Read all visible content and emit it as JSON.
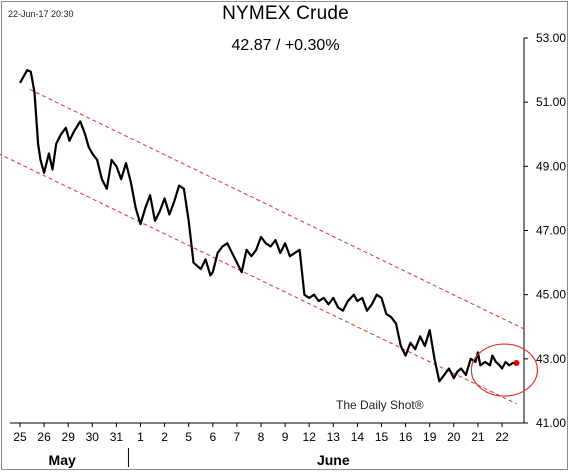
{
  "header": {
    "timestamp": "22-Jun-17 20:30",
    "title": "NYMEX Crude",
    "subtitle": "42.87  /  +0.30%"
  },
  "watermark": "The Daily Shot®",
  "chart_data": {
    "type": "line",
    "title": "NYMEX Crude",
    "subtitle": "42.87  /  +0.30%",
    "y_axis": {
      "position": "right",
      "ylim": [
        41.0,
        53.0
      ],
      "ticks": [
        "53.00",
        "51.00",
        "49.00",
        "47.00",
        "45.00",
        "43.00",
        "41.00"
      ]
    },
    "x_ticks": [
      "25",
      "26",
      "29",
      "30",
      "31",
      "1",
      "2",
      "5",
      "6",
      "7",
      "8",
      "9",
      "12",
      "13",
      "14",
      "15",
      "16",
      "19",
      "20",
      "21",
      "22"
    ],
    "month_labels": [
      "May",
      "June"
    ],
    "grid": false,
    "series": [
      {
        "color": "#000000",
        "x": [
          0,
          0.3,
          0.45,
          0.6,
          0.75,
          0.85,
          1.0,
          1.1,
          1.2,
          1.35,
          1.5,
          1.7,
          1.9,
          2.05,
          2.25,
          2.5,
          2.7,
          2.85,
          3.0,
          3.2,
          3.4,
          3.6,
          3.8,
          4.0,
          4.2,
          4.4,
          4.6,
          4.8,
          5.0,
          5.2,
          5.4,
          5.6,
          5.8,
          6.0,
          6.2,
          6.4,
          6.6,
          6.8,
          7.0,
          7.2,
          7.35,
          7.5,
          7.7,
          7.9,
          8.0,
          8.2,
          8.4,
          8.6,
          8.8,
          9.0,
          9.2,
          9.4,
          9.6,
          9.8,
          10.0,
          10.2,
          10.4,
          10.6,
          10.8,
          11.0,
          11.2,
          11.4,
          11.6,
          11.8,
          12.0,
          12.2,
          12.4,
          12.6,
          12.8,
          13.0,
          13.2,
          13.4,
          13.6,
          13.85,
          14.0,
          14.2,
          14.4,
          14.6,
          14.8,
          15.0,
          15.2,
          15.4,
          15.6,
          15.8,
          16.0,
          16.2,
          16.4,
          16.6,
          16.8,
          17.0,
          17.2,
          17.4,
          17.6,
          17.8,
          18.0,
          18.15,
          18.3,
          18.5,
          18.7,
          18.9,
          19.0,
          19.1,
          19.3,
          19.5,
          19.6,
          19.75,
          19.9,
          20.0,
          20.15,
          20.3,
          20.45,
          20.6
        ],
        "values": [
          51.6,
          52.0,
          51.95,
          51.3,
          49.7,
          49.2,
          48.8,
          49.1,
          49.4,
          48.9,
          49.7,
          50.0,
          50.2,
          49.8,
          50.1,
          50.4,
          50.0,
          49.6,
          49.4,
          49.2,
          48.6,
          48.3,
          49.2,
          49.0,
          48.6,
          49.1,
          48.5,
          47.7,
          47.2,
          47.7,
          48.1,
          47.3,
          47.6,
          48.0,
          47.5,
          47.9,
          48.4,
          48.3,
          47.3,
          46.0,
          45.9,
          45.8,
          46.1,
          45.6,
          45.7,
          46.3,
          46.5,
          46.6,
          46.3,
          46.0,
          45.7,
          46.4,
          46.2,
          46.4,
          46.8,
          46.6,
          46.5,
          46.7,
          46.3,
          46.6,
          46.2,
          46.3,
          46.4,
          45.0,
          44.9,
          45.0,
          44.8,
          44.9,
          44.7,
          44.9,
          44.6,
          44.5,
          44.8,
          45.0,
          44.8,
          44.9,
          44.5,
          44.7,
          45.0,
          44.9,
          44.4,
          44.3,
          44.1,
          43.4,
          43.1,
          43.5,
          43.3,
          43.7,
          43.4,
          43.9,
          43.0,
          42.3,
          42.5,
          42.7,
          42.4,
          42.6,
          42.7,
          42.5,
          43.0,
          42.9,
          43.2,
          42.8,
          42.9,
          42.8,
          43.1,
          42.9,
          42.8,
          42.7,
          42.9,
          42.8,
          42.87,
          42.87
        ]
      }
    ],
    "channel_lines": [
      {
        "color": "#e03030",
        "style": "dashed",
        "x": [
          0.4,
          21.0
        ],
        "values": [
          51.4,
          43.9
        ]
      },
      {
        "color": "#e03030",
        "style": "dashed",
        "x": [
          -0.9,
          20.6
        ],
        "values": [
          49.4,
          41.6
        ]
      }
    ],
    "highlight": {
      "shape": "circle",
      "color": "#e03030",
      "x": 20.1,
      "value": 42.65
    },
    "last_point": {
      "color": "#e00000",
      "x": 20.6,
      "value": 42.87
    }
  }
}
